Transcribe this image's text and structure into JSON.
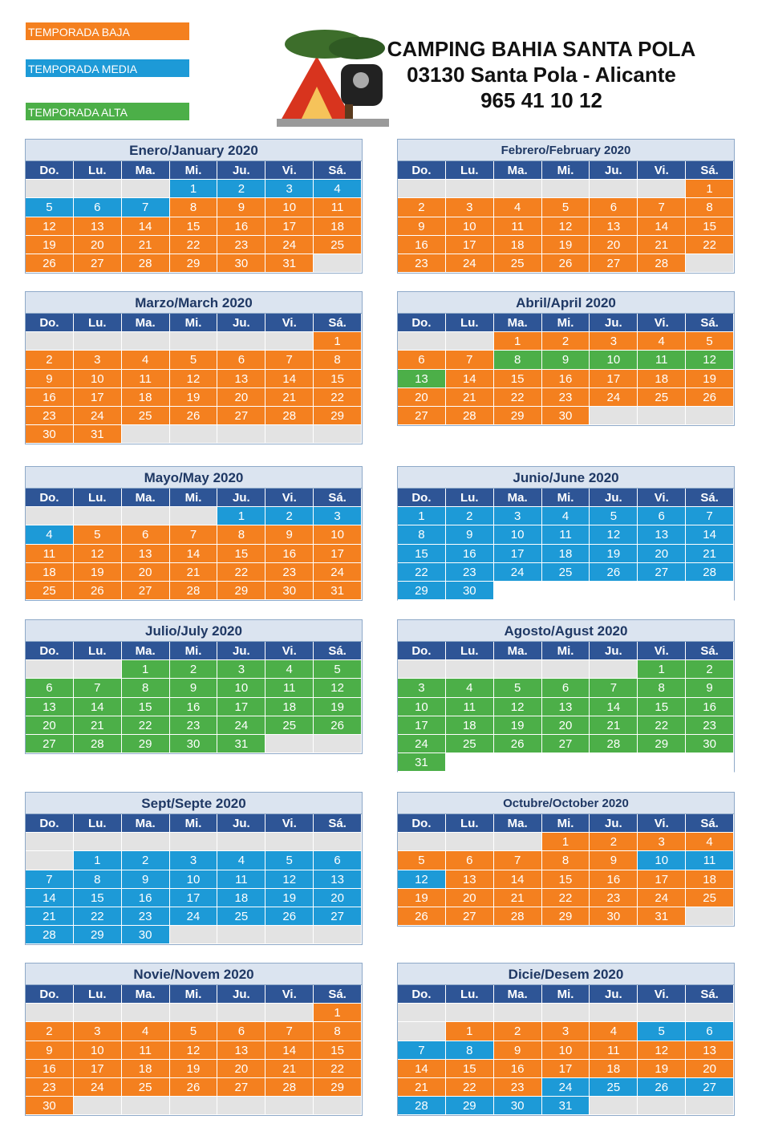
{
  "legend": [
    {
      "label": "TEMPORADA BAJA",
      "code": "b"
    },
    {
      "label": "TEMPORADA MEDIA",
      "code": "m"
    },
    {
      "label": "TEMPORADA ALTA",
      "code": "a"
    }
  ],
  "palette": {
    "b": "#f4801f",
    "m": "#1d9ad7",
    "a": "#4caf48",
    "g": "#e3e3e3",
    "w": "#ffffff"
  },
  "header": {
    "lines": [
      "CAMPING BAHIA SANTA POLA",
      "03130 Santa Pola - Alicante",
      "965 41 10 12"
    ]
  },
  "weekdays": [
    "Do.",
    "Lu.",
    "Ma.",
    "Mi.",
    "Ju.",
    "Vi.",
    "Sá."
  ],
  "months": [
    {
      "title": "Enero/January 2020",
      "weeks": [
        [
          null,
          null,
          null,
          1,
          2,
          3,
          4
        ],
        [
          5,
          6,
          7,
          8,
          9,
          10,
          11
        ],
        [
          12,
          13,
          14,
          15,
          16,
          17,
          18
        ],
        [
          19,
          20,
          21,
          22,
          23,
          24,
          25
        ],
        [
          26,
          27,
          28,
          29,
          30,
          31,
          null
        ]
      ],
      "colors": [
        "gggmmmm",
        "mmmbbbb",
        "bbbbbbb",
        "bbbbbbb",
        "bbbbbbg"
      ]
    },
    {
      "title": "Febrero/February 2020",
      "small": true,
      "weeks": [
        [
          null,
          null,
          null,
          null,
          null,
          null,
          1
        ],
        [
          2,
          3,
          4,
          5,
          6,
          7,
          8
        ],
        [
          9,
          10,
          11,
          12,
          13,
          14,
          15
        ],
        [
          16,
          17,
          18,
          19,
          20,
          21,
          22
        ],
        [
          23,
          24,
          25,
          26,
          27,
          28,
          null
        ]
      ],
      "colors": [
        "ggggggb",
        "bbbbbbb",
        "bbbbbbb",
        "bbbbbbb",
        "bbbbbbg"
      ]
    },
    {
      "title": "Marzo/March 2020",
      "weeks": [
        [
          null,
          null,
          null,
          null,
          null,
          null,
          1
        ],
        [
          2,
          3,
          4,
          5,
          6,
          7,
          8
        ],
        [
          9,
          10,
          11,
          12,
          13,
          14,
          15
        ],
        [
          16,
          17,
          18,
          19,
          20,
          21,
          22
        ],
        [
          23,
          24,
          25,
          26,
          27,
          28,
          29
        ],
        [
          30,
          31,
          null,
          null,
          null,
          null,
          null
        ]
      ],
      "colors": [
        "ggggggb",
        "bbbbbbb",
        "bbbbbbb",
        "bbbbbbb",
        "bbbbbbb",
        "bbggggg"
      ]
    },
    {
      "title": "Abril/April 2020",
      "weeks": [
        [
          null,
          null,
          1,
          2,
          3,
          4,
          5
        ],
        [
          6,
          7,
          8,
          9,
          10,
          11,
          12
        ],
        [
          13,
          14,
          15,
          16,
          17,
          18,
          19
        ],
        [
          20,
          21,
          22,
          23,
          24,
          25,
          26
        ],
        [
          27,
          28,
          29,
          30,
          null,
          null,
          null
        ]
      ],
      "colors": [
        "ggbbbbb",
        "bbaaaaa",
        "abbbbbb",
        "bbbbbbb",
        "bbbbggg"
      ]
    },
    {
      "title": "Mayo/May 2020",
      "weeks": [
        [
          null,
          null,
          null,
          null,
          1,
          2,
          3
        ],
        [
          4,
          5,
          6,
          7,
          8,
          9,
          10
        ],
        [
          11,
          12,
          13,
          14,
          15,
          16,
          17
        ],
        [
          18,
          19,
          20,
          21,
          22,
          23,
          24
        ],
        [
          25,
          26,
          27,
          28,
          29,
          30,
          31
        ]
      ],
      "colors": [
        "ggggmmm",
        "mbbbbbb",
        "bbbbbbb",
        "bbbbbbb",
        "bbbbbbb"
      ]
    },
    {
      "title": "Junio/June 2020",
      "weeks": [
        [
          1,
          2,
          3,
          4,
          5,
          6,
          7
        ],
        [
          8,
          9,
          10,
          11,
          12,
          13,
          14
        ],
        [
          15,
          16,
          17,
          18,
          19,
          20,
          21
        ],
        [
          22,
          23,
          24,
          25,
          26,
          27,
          28
        ],
        [
          29,
          30,
          null,
          null,
          null,
          null,
          null
        ]
      ],
      "colors": [
        "mmmmmmm",
        "mmmmmmm",
        "mmmmmmm",
        "mmmmmmm",
        "mmwwwww"
      ]
    },
    {
      "title": "Julio/July 2020",
      "weeks": [
        [
          null,
          null,
          1,
          2,
          3,
          4,
          5
        ],
        [
          6,
          7,
          8,
          9,
          10,
          11,
          12
        ],
        [
          13,
          14,
          15,
          16,
          17,
          18,
          19
        ],
        [
          20,
          21,
          22,
          23,
          24,
          25,
          26
        ],
        [
          27,
          28,
          29,
          30,
          31,
          null,
          null
        ]
      ],
      "colors": [
        "ggaaaaa",
        "aaaaaaa",
        "aaaaaaa",
        "aaaaaaa",
        "aaaaagg"
      ]
    },
    {
      "title": "Agosto/Agust 2020",
      "weeks": [
        [
          null,
          null,
          null,
          null,
          null,
          1,
          2
        ],
        [
          3,
          4,
          5,
          6,
          7,
          8,
          9
        ],
        [
          10,
          11,
          12,
          13,
          14,
          15,
          16
        ],
        [
          17,
          18,
          19,
          20,
          21,
          22,
          23
        ],
        [
          24,
          25,
          26,
          27,
          28,
          29,
          30
        ],
        [
          31,
          null,
          null,
          null,
          null,
          null,
          null
        ]
      ],
      "colors": [
        "gggggaa",
        "aaaaaaa",
        "aaaaaaa",
        "aaaaaaa",
        "aaaaaaa",
        "awwwwww"
      ]
    },
    {
      "title": "Sept/Septe 2020",
      "weeks": [
        [
          null,
          null,
          null,
          null,
          null,
          null,
          null
        ],
        [
          null,
          1,
          2,
          3,
          4,
          5,
          6
        ],
        [
          7,
          8,
          9,
          10,
          11,
          12,
          13
        ],
        [
          14,
          15,
          16,
          17,
          18,
          19,
          20
        ],
        [
          21,
          22,
          23,
          24,
          25,
          26,
          27
        ],
        [
          28,
          29,
          30,
          null,
          null,
          null,
          null
        ]
      ],
      "colors": [
        "ggggggg",
        "gmmmmmm",
        "mmmmmmm",
        "mmmmmmm",
        "mmmmmmm",
        "mmmgggg"
      ]
    },
    {
      "title": "Octubre/October 2020",
      "small": true,
      "weeks": [
        [
          null,
          null,
          null,
          1,
          2,
          3,
          4
        ],
        [
          5,
          6,
          7,
          8,
          9,
          10,
          11
        ],
        [
          12,
          13,
          14,
          15,
          16,
          17,
          18
        ],
        [
          19,
          20,
          21,
          22,
          23,
          24,
          25
        ],
        [
          26,
          27,
          28,
          29,
          30,
          31,
          null
        ]
      ],
      "colors": [
        "gggbbbb",
        "bbbbbmm",
        "mbbbbbb",
        "bbbbbbb",
        "bbbbbbg"
      ]
    },
    {
      "title": "Novie/Novem 2020",
      "weeks": [
        [
          null,
          null,
          null,
          null,
          null,
          null,
          1
        ],
        [
          2,
          3,
          4,
          5,
          6,
          7,
          8
        ],
        [
          9,
          10,
          11,
          12,
          13,
          14,
          15
        ],
        [
          16,
          17,
          18,
          19,
          20,
          21,
          22
        ],
        [
          23,
          24,
          25,
          26,
          27,
          28,
          29
        ],
        [
          30,
          null,
          null,
          null,
          null,
          null,
          null
        ]
      ],
      "colors": [
        "ggggggb",
        "bbbbbbb",
        "bbbbbbb",
        "bbbbbbb",
        "bbbbbbb",
        "bgggggg"
      ]
    },
    {
      "title": "Dicie/Desem 2020",
      "weeks": [
        [
          null,
          null,
          null,
          null,
          null,
          null,
          null
        ],
        [
          null,
          1,
          2,
          3,
          4,
          5,
          6
        ],
        [
          7,
          8,
          9,
          10,
          11,
          12,
          13
        ],
        [
          14,
          15,
          16,
          17,
          18,
          19,
          20
        ],
        [
          21,
          22,
          23,
          24,
          25,
          26,
          27
        ],
        [
          28,
          29,
          30,
          31,
          null,
          null,
          null
        ]
      ],
      "colors": [
        "ggggggg",
        "gbbbbmm",
        "mmbbbbb",
        "bbbbbbb",
        "bbbmmmm",
        "mmmmggg"
      ]
    }
  ]
}
